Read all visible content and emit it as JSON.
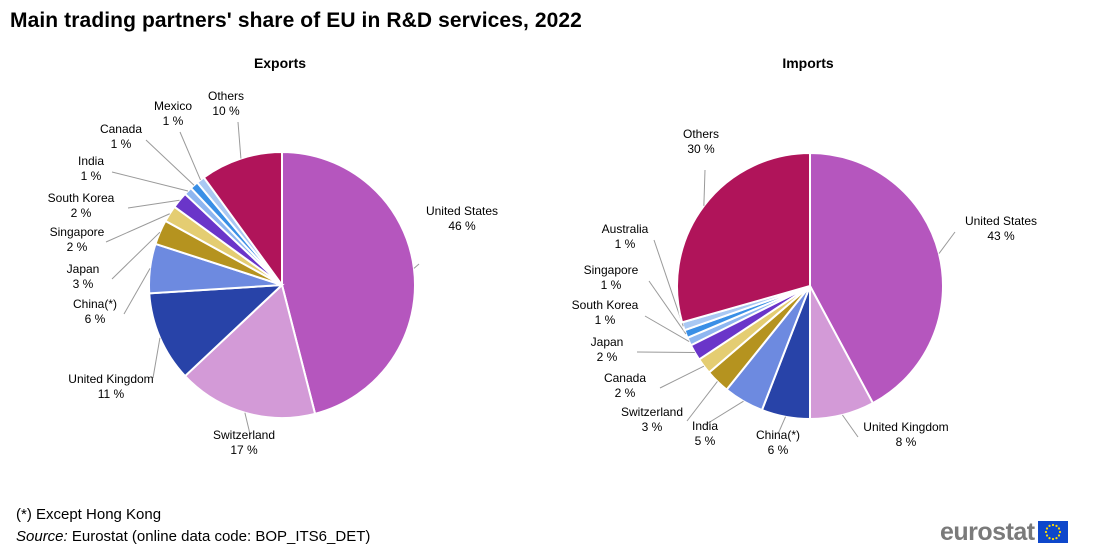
{
  "title": "Main trading partners' share of EU in R&D services, 2022",
  "footnote": "(*) Except Hong Kong",
  "source_label": "Source:",
  "source_text": " Eurostat (online data code: BOP_ITS6_DET)",
  "logo_text": "eurostat",
  "chart_data": [
    {
      "type": "pie",
      "title": "Exports",
      "unit": "%",
      "slices": [
        {
          "name": "United States",
          "value": 46,
          "color": "#b556be"
        },
        {
          "name": "Switzerland",
          "value": 17,
          "color": "#d39ad7"
        },
        {
          "name": "United Kingdom",
          "value": 11,
          "color": "#2843a8"
        },
        {
          "name": "China(*)",
          "value": 6,
          "color": "#6d8ae0"
        },
        {
          "name": "Japan",
          "value": 3,
          "color": "#b5931f"
        },
        {
          "name": "Singapore",
          "value": 2,
          "color": "#e4cd72"
        },
        {
          "name": "South Korea",
          "value": 2,
          "color": "#6a35c9"
        },
        {
          "name": "India",
          "value": 1,
          "color": "#8eb6f0"
        },
        {
          "name": "Canada",
          "value": 1,
          "color": "#3a8fe6"
        },
        {
          "name": "Mexico",
          "value": 1,
          "color": "#a9c8f3"
        },
        {
          "name": "Others",
          "value": 10,
          "color": "#b0145a"
        }
      ]
    },
    {
      "type": "pie",
      "title": "Imports",
      "unit": "%",
      "slices": [
        {
          "name": "United States",
          "value": 43,
          "color": "#b556be"
        },
        {
          "name": "United Kingdom",
          "value": 8,
          "color": "#d39ad7"
        },
        {
          "name": "China(*)",
          "value": 6,
          "color": "#2843a8"
        },
        {
          "name": "India",
          "value": 5,
          "color": "#6d8ae0"
        },
        {
          "name": "Switzerland",
          "value": 3,
          "color": "#b5931f"
        },
        {
          "name": "Canada",
          "value": 2,
          "color": "#e4cd72"
        },
        {
          "name": "Japan",
          "value": 2,
          "color": "#6a35c9"
        },
        {
          "name": "South Korea",
          "value": 1,
          "color": "#8eb6f0"
        },
        {
          "name": "Singapore",
          "value": 1,
          "color": "#3a8fe6"
        },
        {
          "name": "Australia",
          "value": 1,
          "color": "#a9c8f3"
        },
        {
          "name": "Others",
          "value": 30,
          "color": "#b0145a"
        }
      ]
    }
  ]
}
